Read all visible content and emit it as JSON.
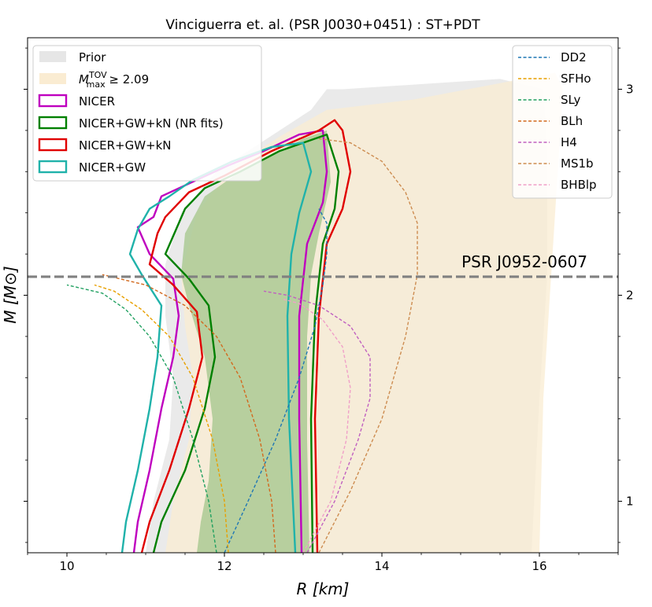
{
  "chart_data": {
    "type": "area",
    "title": "Vinciguerra et. al. (PSR J0030+0451) : ST+PDT",
    "xlabel": "R [km]",
    "ylabel": "M [M⊙]",
    "xlim": [
      9.5,
      17.0
    ],
    "ylim": [
      0.75,
      3.25
    ],
    "x_ticks": [
      "10",
      "12",
      "14",
      "16"
    ],
    "y_ticks": [
      "1",
      "2",
      "3"
    ],
    "y_tick_side": "right",
    "grid": false,
    "reference_line": {
      "label": "PSR J0952-0607",
      "y": 2.09,
      "color": "#808080"
    },
    "legend_left": {
      "placement": "top-left",
      "entries": [
        {
          "label": "Prior",
          "color": "#e6e6e6"
        },
        {
          "label": "M",
          "sup": "TOV",
          "sub": "max",
          "suffix": " ≥ 2.09",
          "color": "#faecd2"
        },
        {
          "label": "NICER",
          "color": "#bf00bf"
        },
        {
          "label": "NICER+GW+kN (NR fits)",
          "color": "#008000"
        },
        {
          "label": "NICER+GW+kN",
          "color": "#e00000"
        },
        {
          "label": "NICER+GW",
          "color": "#20b2aa"
        }
      ]
    },
    "legend_right": {
      "placement": "top-right",
      "entries": [
        {
          "label": "DD2",
          "color": "#1f77b4"
        },
        {
          "label": "SFHo",
          "color": "#e8a000"
        },
        {
          "label": "SLy",
          "color": "#20a060"
        },
        {
          "label": "BLh",
          "color": "#d2691e"
        },
        {
          "label": "H4",
          "color": "#c060c0"
        },
        {
          "label": "MS1b",
          "color": "#cd8c50"
        },
        {
          "label": "BHBlp",
          "color": "#f0a0c8"
        }
      ]
    },
    "regions": {
      "prior": {
        "color": "#e9e9e9",
        "left_x": [
          11.0,
          11.1,
          11.3,
          11.35,
          11.25,
          11.25,
          11.45,
          11.9,
          12.5,
          13.1,
          13.3
        ],
        "left_y": [
          0.75,
          1.0,
          1.3,
          1.6,
          1.9,
          2.15,
          2.4,
          2.6,
          2.75,
          2.9,
          3.0
        ],
        "right_x": [
          13.5,
          15.5,
          16.05,
          16.1,
          16.1,
          16.0,
          15.9
        ],
        "right_y": [
          3.0,
          3.05,
          3.0,
          2.7,
          2.1,
          1.5,
          0.75
        ]
      },
      "mmax": {
        "color": "#faecd2",
        "left_x": [
          11.25,
          11.35,
          11.55,
          11.6,
          11.5,
          11.45,
          11.65,
          12.1,
          12.7,
          13.3,
          14.4
        ],
        "left_y": [
          0.75,
          1.0,
          1.3,
          1.6,
          1.85,
          2.1,
          2.4,
          2.62,
          2.77,
          2.9,
          2.95
        ],
        "right_x": [
          14.4,
          16.2,
          16.3,
          16.25,
          16.15,
          16.05,
          16.0
        ],
        "right_y": [
          2.95,
          3.08,
          3.0,
          2.7,
          2.1,
          1.5,
          0.75
        ]
      },
      "nrfits": {
        "color": "#a8c890",
        "left_x": [
          11.65,
          11.7,
          11.8,
          11.85,
          11.75,
          11.55,
          11.45,
          11.5,
          11.75,
          12.2,
          12.7,
          13.0,
          13.3
        ],
        "left_y": [
          0.75,
          0.9,
          1.1,
          1.4,
          1.7,
          1.95,
          2.1,
          2.3,
          2.48,
          2.6,
          2.7,
          2.76,
          2.8
        ],
        "right_x": [
          13.3,
          13.35,
          13.2,
          13.1,
          13.05,
          13.05,
          13.08
        ],
        "right_y": [
          2.8,
          2.55,
          2.3,
          2.1,
          1.8,
          1.3,
          0.75
        ]
      }
    },
    "contours": [
      {
        "name": "NICER",
        "color": "#bf00bf",
        "left_x": [
          10.85,
          10.9,
          11.05,
          11.2,
          11.35,
          11.42,
          11.35,
          11.05,
          10.9,
          11.1,
          11.2,
          11.65,
          12.05,
          12.5,
          12.95,
          13.25
        ],
        "left_y": [
          0.75,
          0.9,
          1.15,
          1.45,
          1.7,
          1.9,
          2.08,
          2.2,
          2.33,
          2.38,
          2.48,
          2.56,
          2.63,
          2.7,
          2.78,
          2.8
        ],
        "right_x": [
          13.25,
          13.3,
          13.25,
          13.05,
          12.95,
          12.95,
          12.98
        ],
        "right_y": [
          2.8,
          2.6,
          2.45,
          2.25,
          1.9,
          1.4,
          0.75
        ]
      },
      {
        "name": "NICER+GW+kN (NR fits)",
        "color": "#008000",
        "left_x": [
          11.1,
          11.2,
          11.5,
          11.75,
          11.88,
          11.8,
          11.55,
          11.25,
          11.5,
          11.75,
          12.2,
          12.7,
          13.3
        ],
        "left_y": [
          0.75,
          0.9,
          1.15,
          1.45,
          1.7,
          1.95,
          2.08,
          2.2,
          2.42,
          2.52,
          2.6,
          2.7,
          2.78
        ],
        "right_x": [
          13.3,
          13.45,
          13.4,
          13.25,
          13.15,
          13.1,
          13.12
        ],
        "right_y": [
          2.78,
          2.6,
          2.42,
          2.25,
          1.9,
          1.4,
          0.75
        ]
      },
      {
        "name": "NICER+GW+kN",
        "color": "#e00000",
        "left_x": [
          10.95,
          11.05,
          11.3,
          11.55,
          11.72,
          11.65,
          11.35,
          11.05,
          11.15,
          11.25,
          11.55,
          12.0,
          12.6,
          13.2,
          13.4,
          13.5
        ],
        "left_y": [
          0.75,
          0.9,
          1.15,
          1.45,
          1.7,
          1.92,
          2.05,
          2.15,
          2.3,
          2.38,
          2.5,
          2.58,
          2.7,
          2.8,
          2.85,
          2.8
        ],
        "right_x": [
          13.5,
          13.6,
          13.5,
          13.3,
          13.2,
          13.15,
          13.18
        ],
        "right_y": [
          2.8,
          2.6,
          2.42,
          2.25,
          1.9,
          1.4,
          0.75
        ]
      },
      {
        "name": "NICER+GW",
        "color": "#20b2aa",
        "left_x": [
          10.7,
          10.75,
          10.9,
          11.05,
          11.15,
          11.2,
          10.95,
          10.8,
          10.9,
          11.05,
          11.3,
          11.6,
          12.1,
          12.6,
          13.0
        ],
        "left_y": [
          0.75,
          0.9,
          1.15,
          1.45,
          1.7,
          1.95,
          2.1,
          2.2,
          2.32,
          2.42,
          2.48,
          2.56,
          2.65,
          2.72,
          2.74
        ],
        "right_x": [
          13.0,
          13.1,
          12.95,
          12.85,
          12.8,
          12.82,
          12.9
        ],
        "right_y": [
          2.74,
          2.6,
          2.4,
          2.2,
          1.9,
          1.4,
          0.75
        ]
      }
    ],
    "eos_curves": [
      {
        "name": "DD2",
        "color": "#1f77b4",
        "x": [
          12.0,
          12.3,
          12.65,
          12.95,
          13.15,
          13.25,
          13.3,
          13.3,
          13.2
        ],
        "y": [
          0.75,
          1.0,
          1.3,
          1.6,
          1.85,
          2.05,
          2.2,
          2.35,
          2.42
        ]
      },
      {
        "name": "SFHo",
        "color": "#e8a000",
        "x": [
          12.05,
          12.0,
          11.85,
          11.6,
          11.3,
          10.95,
          10.6,
          10.35
        ],
        "y": [
          0.75,
          1.0,
          1.3,
          1.6,
          1.8,
          1.93,
          2.02,
          2.05
        ]
      },
      {
        "name": "SLy",
        "color": "#20a060",
        "x": [
          11.9,
          11.8,
          11.6,
          11.35,
          11.05,
          10.75,
          10.45,
          10.0
        ],
        "y": [
          0.75,
          1.0,
          1.3,
          1.6,
          1.8,
          1.93,
          2.01,
          2.05
        ]
      },
      {
        "name": "BLh",
        "color": "#d2691e",
        "x": [
          12.65,
          12.6,
          12.45,
          12.2,
          11.9,
          11.5,
          11.0,
          10.45
        ],
        "y": [
          0.75,
          1.0,
          1.3,
          1.6,
          1.8,
          1.95,
          2.05,
          2.1
        ]
      },
      {
        "name": "H4",
        "color": "#c060c0",
        "x": [
          13.05,
          13.4,
          13.7,
          13.85,
          13.85,
          13.6,
          13.2,
          12.8,
          12.5
        ],
        "y": [
          0.75,
          1.0,
          1.3,
          1.5,
          1.7,
          1.85,
          1.95,
          2.0,
          2.02
        ]
      },
      {
        "name": "MS1b",
        "color": "#cd8c50",
        "x": [
          13.2,
          13.6,
          14.0,
          14.3,
          14.45,
          14.45,
          14.3,
          14.0,
          13.6,
          13.2
        ],
        "y": [
          0.75,
          1.05,
          1.4,
          1.8,
          2.1,
          2.35,
          2.5,
          2.65,
          2.74,
          2.76
        ]
      },
      {
        "name": "BHBlp",
        "color": "#f0a0c8",
        "x": [
          13.0,
          13.35,
          13.55,
          13.6,
          13.5,
          13.25,
          12.95,
          12.75
        ],
        "y": [
          0.75,
          1.0,
          1.3,
          1.55,
          1.75,
          1.88,
          1.96,
          1.98
        ]
      }
    ]
  }
}
